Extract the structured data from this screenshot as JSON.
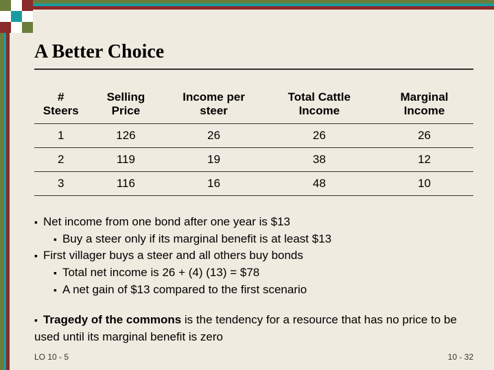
{
  "title": "A Better Choice",
  "table": {
    "columns": [
      "# Steers",
      "Selling Price",
      "Income per steer",
      "Total Cattle Income",
      "Marginal Income"
    ],
    "rows": [
      [
        "1",
        "126",
        "26",
        "26",
        "26"
      ],
      [
        "2",
        "119",
        "19",
        "38",
        "12"
      ],
      [
        "3",
        "116",
        "16",
        "48",
        "10"
      ]
    ],
    "header_fontsize": 17,
    "cell_fontsize": 17,
    "row_bg": "#f0ebe0",
    "border_color": "#333333"
  },
  "bullets": {
    "block1": [
      {
        "level": 1,
        "text": "Net income from one bond after one year is $13"
      },
      {
        "level": 2,
        "text": "Buy a steer only if its marginal benefit is at least $13"
      },
      {
        "level": 1,
        "text": "First villager buys a steer and all others buy bonds"
      },
      {
        "level": 2,
        "text": "Total net income is 26 + (4) (13) = $78"
      },
      {
        "level": 2,
        "text": "A net gain of $13 compared to the first scenario"
      }
    ],
    "block2": [
      {
        "level": 1,
        "html": "<b>Tragedy of the commons</b> is the tendency for a resource that has no price to be used until its marginal benefit is zero"
      }
    ]
  },
  "footer": {
    "left": "LO 10 - 5",
    "right": "10 - 32"
  },
  "borders": {
    "stripe_colors": [
      "#6b7d3a",
      "#ffffff",
      "#1a9ba0",
      "#ffffff",
      "#8b2a2a"
    ],
    "corner_grid": [
      [
        "#6b7d3a",
        "#ffffff",
        "#8b2a2a"
      ],
      [
        "#ffffff",
        "#1a9ba0",
        "#ffffff"
      ],
      [
        "#8b2a2a",
        "#ffffff",
        "#6b7d3a"
      ]
    ]
  },
  "background_color": "#f0ebe0"
}
